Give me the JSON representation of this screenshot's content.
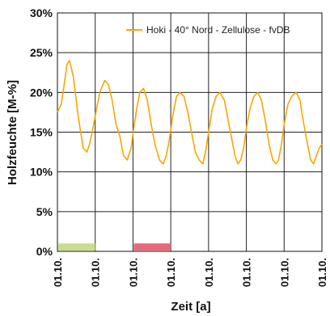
{
  "chart_data": {
    "type": "line",
    "xlabel": "Zeit [a]",
    "ylabel": "Holzfeuchte [M-%]",
    "ylim": [
      0,
      30
    ],
    "xlim": [
      0,
      7
    ],
    "y_ticks": [
      "0%",
      "5%",
      "10%",
      "15%",
      "20%",
      "25%",
      "30%"
    ],
    "x_ticks": [
      "01.10.",
      "01.10.",
      "01.10.",
      "01.10.",
      "01.10.",
      "01.10.",
      "01.10.",
      "01.10."
    ],
    "grid": true,
    "legend_position": "top-right",
    "series": [
      {
        "name": "Hoki - 40° Nord - Zellulose - fvDB",
        "color": "#F5A800",
        "x": [
          0.0,
          0.1,
          0.18,
          0.25,
          0.32,
          0.42,
          0.55,
          0.68,
          0.78,
          0.85,
          0.92,
          1.0,
          1.12,
          1.25,
          1.35,
          1.45,
          1.55,
          1.65,
          1.75,
          1.85,
          1.95,
          2.02,
          2.1,
          2.18,
          2.28,
          2.38,
          2.48,
          2.58,
          2.7,
          2.8,
          2.88,
          2.96,
          3.05,
          3.15,
          3.25,
          3.35,
          3.45,
          3.55,
          3.65,
          3.75,
          3.85,
          3.92,
          4.0,
          4.1,
          4.2,
          4.3,
          4.42,
          4.52,
          4.62,
          4.7,
          4.78,
          4.85,
          4.93,
          5.0,
          5.1,
          5.2,
          5.3,
          5.4,
          5.5,
          5.6,
          5.7,
          5.78,
          5.85,
          5.93,
          6.0,
          6.1,
          6.2,
          6.32,
          6.42,
          6.52,
          6.62,
          6.7,
          6.78,
          6.85,
          6.93,
          7.0
        ],
        "values": [
          17.5,
          18.5,
          21.0,
          23.5,
          24.0,
          22.0,
          17.0,
          13.0,
          12.5,
          13.5,
          15.0,
          17.0,
          20.0,
          21.5,
          21.0,
          19.0,
          16.0,
          14.5,
          12.0,
          11.5,
          13.0,
          15.5,
          18.0,
          20.0,
          20.5,
          19.0,
          16.0,
          13.5,
          11.5,
          11.0,
          12.0,
          14.0,
          17.0,
          19.5,
          20.0,
          19.5,
          17.5,
          15.0,
          12.5,
          11.5,
          11.0,
          12.5,
          15.0,
          18.0,
          19.5,
          20.0,
          19.0,
          16.5,
          14.0,
          12.0,
          11.0,
          11.5,
          13.0,
          15.5,
          18.0,
          19.5,
          20.0,
          19.0,
          16.5,
          13.5,
          11.5,
          11.0,
          11.5,
          13.5,
          16.0,
          18.5,
          19.5,
          20.0,
          19.0,
          16.0,
          13.5,
          11.5,
          11.0,
          12.0,
          13.0,
          13.5
        ]
      }
    ],
    "bands": [
      {
        "x": [
          0,
          1
        ],
        "color": "#C9DE8B"
      },
      {
        "x": [
          2,
          3
        ],
        "color": "#E8687A"
      }
    ]
  }
}
